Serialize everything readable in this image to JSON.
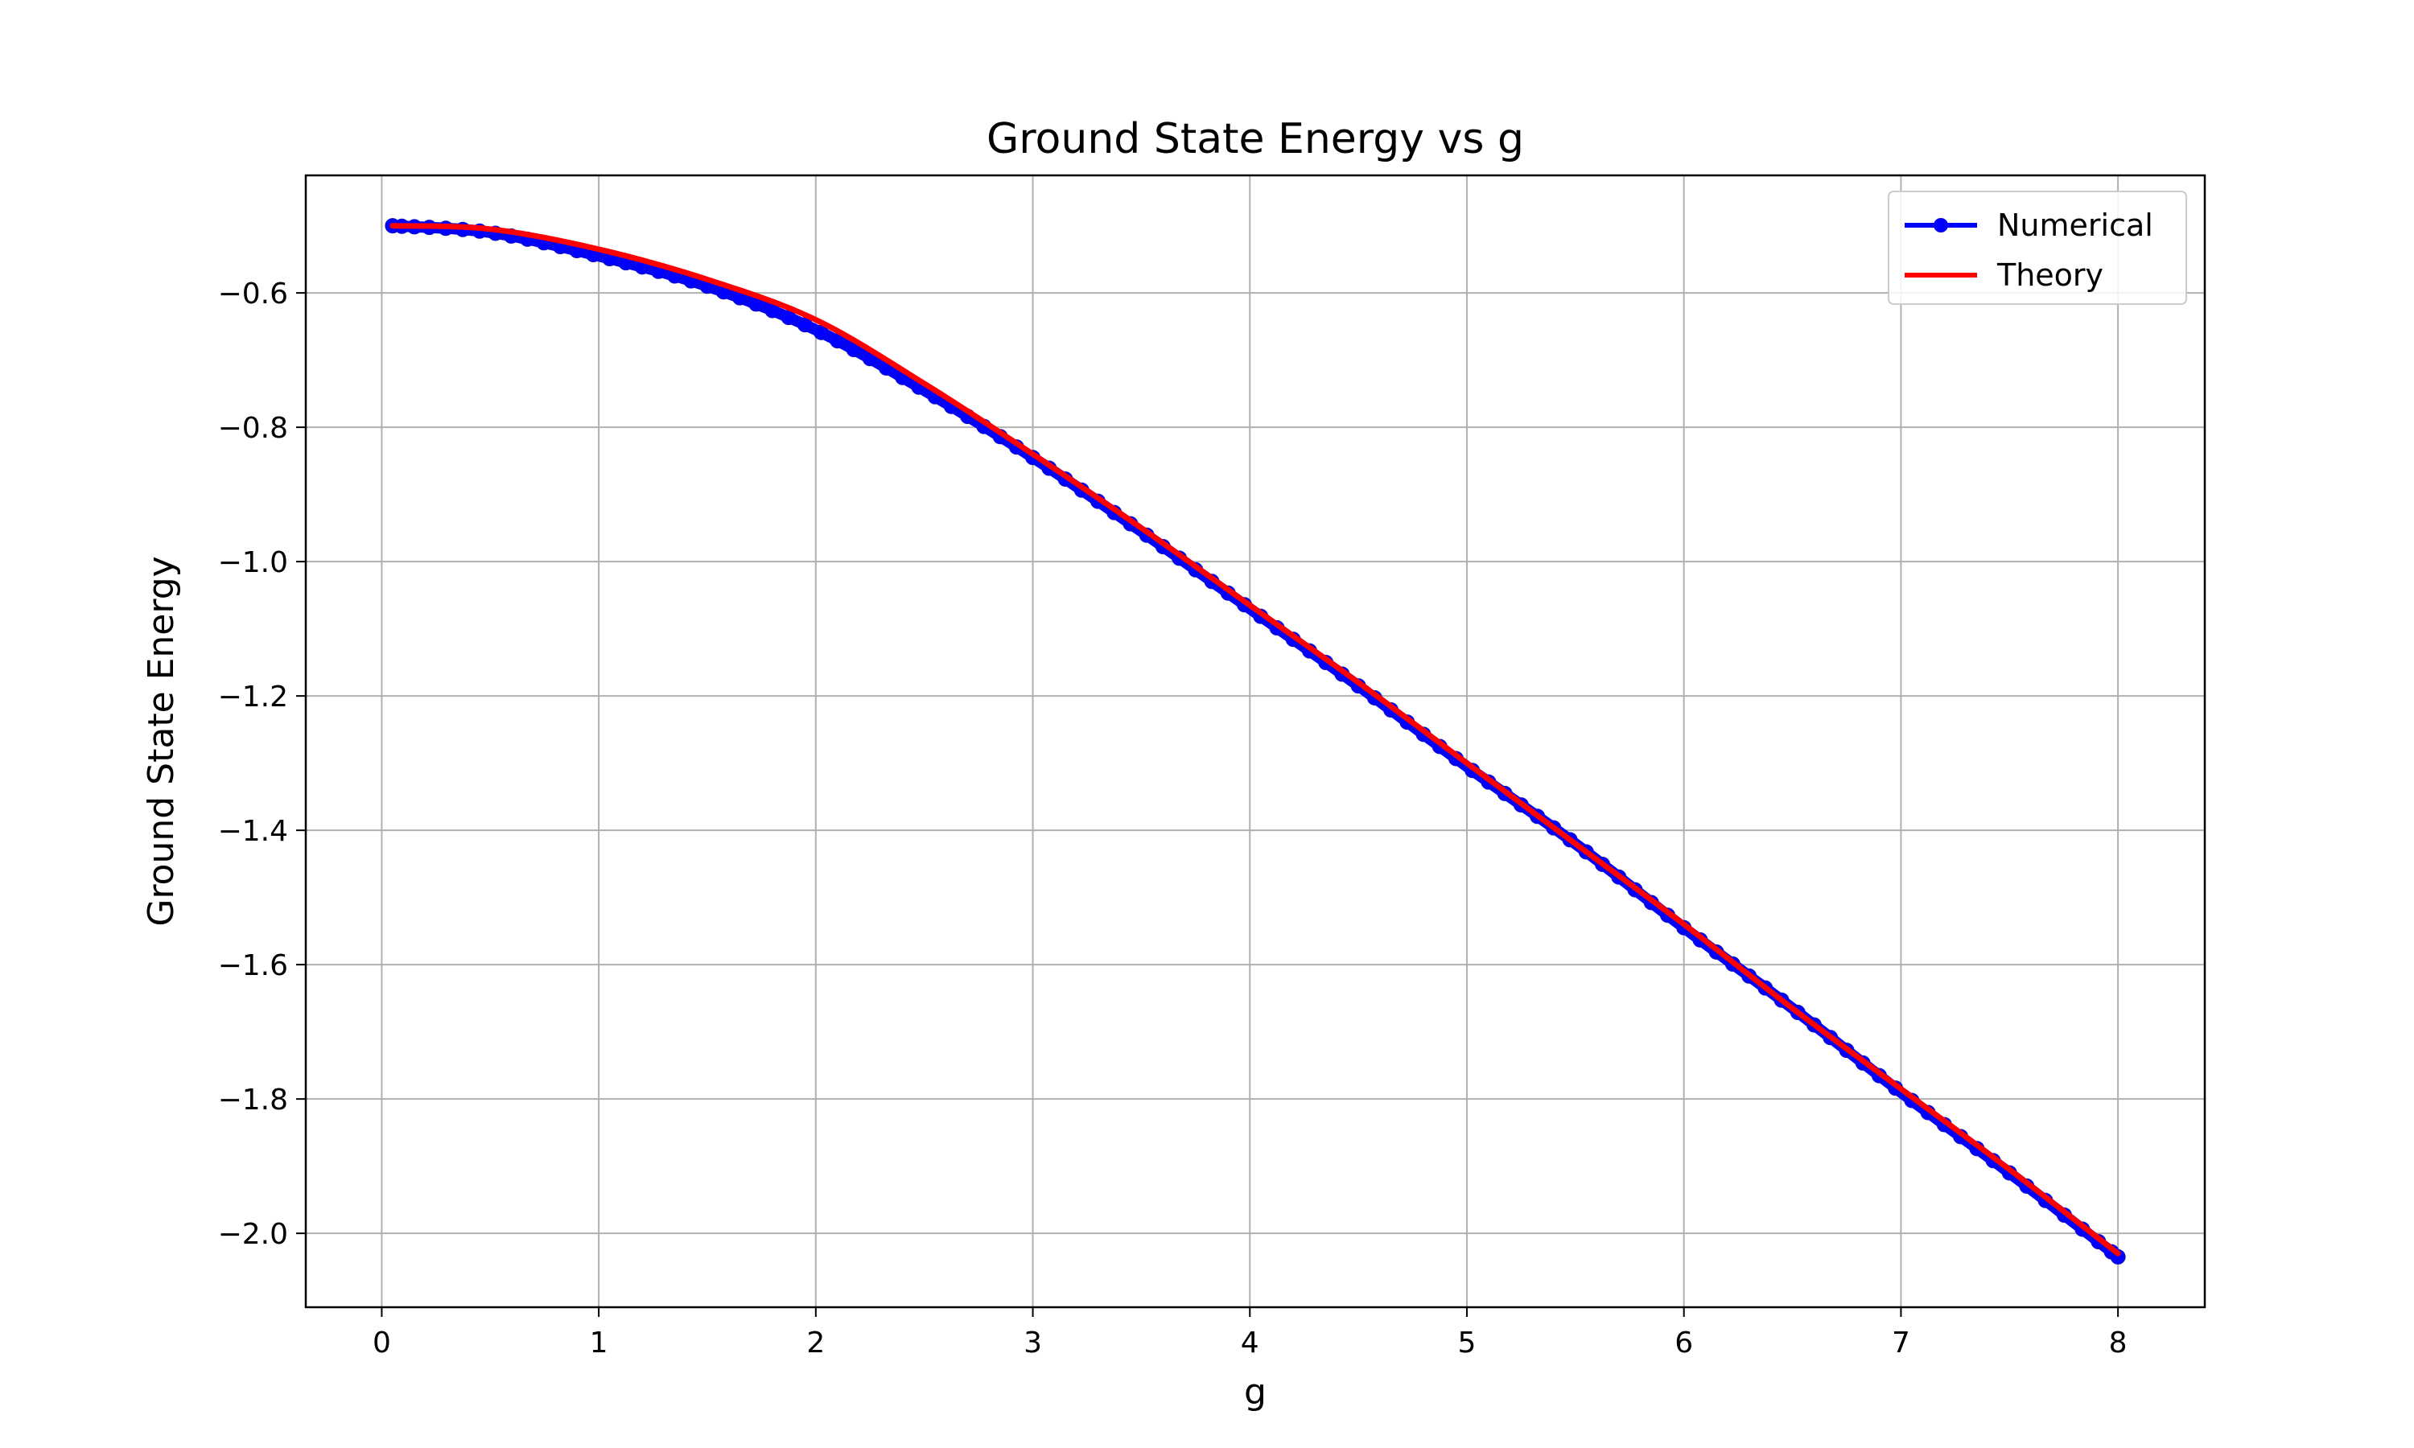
{
  "chart_data": {
    "type": "line",
    "title": "Ground State Energy vs g",
    "xlabel": "g",
    "ylabel": "Ground State Energy",
    "xlim": [
      -0.35,
      8.4
    ],
    "ylim": [
      -2.11,
      -0.425
    ],
    "xticks": [
      0,
      1,
      2,
      3,
      4,
      5,
      6,
      7,
      8
    ],
    "xtick_labels": [
      "0",
      "1",
      "2",
      "3",
      "4",
      "5",
      "6",
      "7",
      "8"
    ],
    "yticks": [
      -2.0,
      -1.8,
      -1.6,
      -1.4,
      -1.2,
      -1.0,
      -0.8,
      -0.6
    ],
    "ytick_labels": [
      "−2.0",
      "−1.8",
      "−1.6",
      "−1.4",
      "−1.2",
      "−1.0",
      "−0.8",
      "−0.6"
    ],
    "grid": true,
    "legend_position": "top-right",
    "x": [
      0.05,
      0.5,
      1.0,
      1.5,
      2.0,
      2.5,
      3.0,
      3.5,
      4.0,
      4.5,
      5.0,
      5.5,
      6.0,
      6.5,
      7.0,
      7.5,
      8.0
    ],
    "series": [
      {
        "name": "Numerical",
        "color": "#0000ff",
        "marker": "circle",
        "values": [
          -0.5,
          -0.51,
          -0.545,
          -0.59,
          -0.655,
          -0.745,
          -0.845,
          -0.955,
          -1.07,
          -1.185,
          -1.305,
          -1.42,
          -1.545,
          -1.665,
          -1.79,
          -1.91,
          -2.035
        ]
      },
      {
        "name": "Theory",
        "color": "#ff0000",
        "marker": "none",
        "values": [
          -0.5,
          -0.505,
          -0.535,
          -0.58,
          -0.64,
          -0.735,
          -0.84,
          -0.95,
          -1.065,
          -1.18,
          -1.3,
          -1.42,
          -1.54,
          -1.665,
          -1.785,
          -1.905,
          -2.03
        ]
      }
    ]
  }
}
